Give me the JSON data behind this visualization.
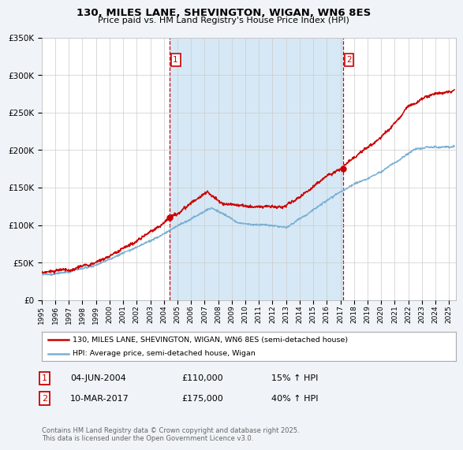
{
  "title": "130, MILES LANE, SHEVINGTON, WIGAN, WN6 8ES",
  "subtitle": "Price paid vs. HM Land Registry's House Price Index (HPI)",
  "ylim": [
    0,
    350000
  ],
  "xlim_start": 1995,
  "xlim_end": 2025.5,
  "sale1_date": 2004.42,
  "sale1_price": 110000,
  "sale1_label": "1",
  "sale2_date": 2017.19,
  "sale2_price": 175000,
  "sale2_label": "2",
  "sale_color": "#cc0000",
  "hpi_color": "#7ab0d4",
  "shade_color": "#d6e8f5",
  "legend1": "130, MILES LANE, SHEVINGTON, WIGAN, WN6 8ES (semi-detached house)",
  "legend2": "HPI: Average price, semi-detached house, Wigan",
  "table_row1": [
    "1",
    "04-JUN-2004",
    "£110,000",
    "15% ↑ HPI"
  ],
  "table_row2": [
    "2",
    "10-MAR-2017",
    "£175,000",
    "40% ↑ HPI"
  ],
  "footnote": "Contains HM Land Registry data © Crown copyright and database right 2025.\nThis data is licensed under the Open Government Licence v3.0.",
  "bg_color": "#f0f4f8",
  "plot_bg_color": "#ffffff",
  "grid_color": "#cccccc"
}
